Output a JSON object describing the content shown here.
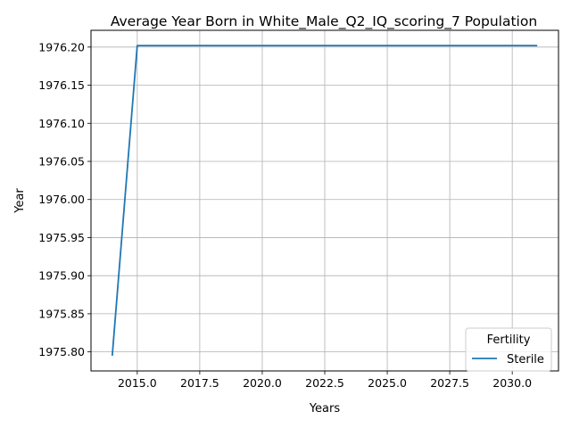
{
  "chart_data": {
    "type": "line",
    "title": "Average Year Born in White_Male_Q2_IQ_scoring_7 Population",
    "xlabel": "Years",
    "ylabel": "Year",
    "xlim": [
      2013.15,
      2031.85
    ],
    "ylim": [
      1975.775,
      1976.222
    ],
    "xticks": [
      2015.0,
      2017.5,
      2020.0,
      2022.5,
      2025.0,
      2027.5,
      2030.0
    ],
    "xtick_labels": [
      "2015.0",
      "2017.5",
      "2020.0",
      "2022.5",
      "2025.0",
      "2027.5",
      "2030.0"
    ],
    "yticks": [
      1975.8,
      1975.85,
      1975.9,
      1975.95,
      1976.0,
      1976.05,
      1976.1,
      1976.15,
      1976.2
    ],
    "ytick_labels": [
      "1975.80",
      "1975.85",
      "1975.90",
      "1975.95",
      "1976.00",
      "1976.05",
      "1976.10",
      "1976.15",
      "1976.20"
    ],
    "grid": true,
    "legend": {
      "title": "Fertility",
      "position": "lower-right"
    },
    "series": [
      {
        "name": "Sterile",
        "color": "#1f77b4",
        "x": [
          2014,
          2015,
          2016,
          2017,
          2018,
          2019,
          2020,
          2021,
          2022,
          2023,
          2024,
          2025,
          2026,
          2027,
          2028,
          2029,
          2030,
          2031
        ],
        "y": [
          1975.795,
          1976.202,
          1976.202,
          1976.202,
          1976.202,
          1976.202,
          1976.202,
          1976.202,
          1976.202,
          1976.202,
          1976.202,
          1976.202,
          1976.202,
          1976.202,
          1976.202,
          1976.202,
          1976.202,
          1976.202
        ]
      }
    ]
  }
}
